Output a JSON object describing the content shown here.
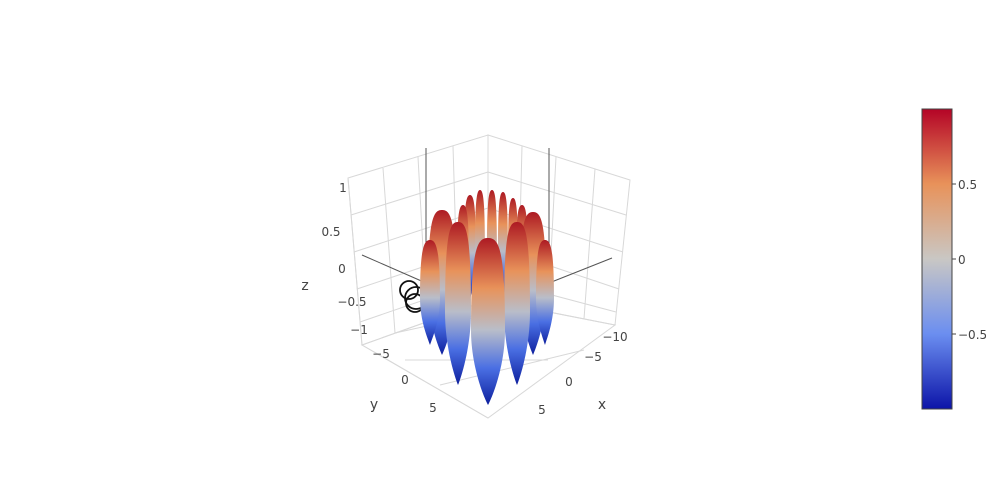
{
  "chart_data": {
    "type": "surface3d",
    "colorscale_name": "coolwarm",
    "colorscale": [
      "#0d1f9e",
      "#4a6fe3",
      "#b9bdc9",
      "#e8925a",
      "#ad1a23"
    ],
    "x_label": "x",
    "y_label": "y",
    "z_label": "z",
    "x_ticks": [
      "−10",
      "−5",
      "0",
      "5"
    ],
    "y_ticks": [
      "−5",
      "0",
      "5"
    ],
    "z_ticks": [
      "1",
      "0.5",
      "0",
      "−0.5",
      "−1"
    ],
    "colorbar_ticks": [
      "0.5",
      "0",
      "−0.5"
    ],
    "colorbar_range": [
      -1,
      1
    ],
    "surface": {
      "function": "sin(sqrt(x^2 + y^2))",
      "x_range": [
        -10,
        10
      ],
      "y_range": [
        -10,
        10
      ]
    },
    "markers": {
      "symbol": "circle-open",
      "color": "#111111"
    },
    "grid": true
  }
}
